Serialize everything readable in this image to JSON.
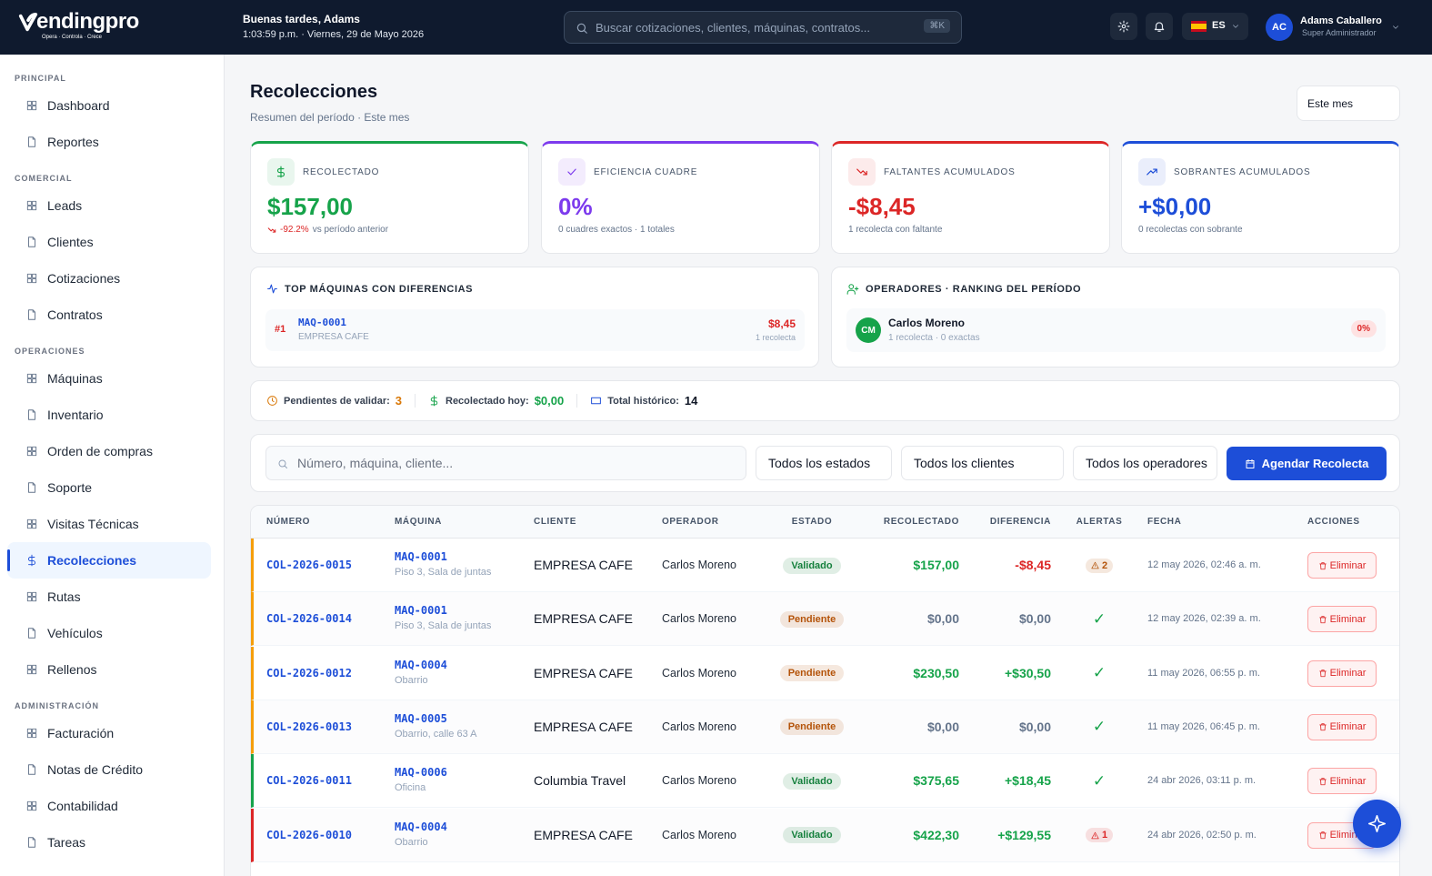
{
  "header": {
    "brand": "endingpro",
    "tagline": "Opera · Controla · Crece",
    "greeting": "Buenas tardes, Adams",
    "datetime": "1:03:59 p.m. · Viernes, 29 de Mayo 2026",
    "search_placeholder": "Buscar cotizaciones, clientes, máquinas, contratos...",
    "shortcut": "⌘K",
    "language": "ES",
    "user": {
      "initials": "AC",
      "name": "Adams Caballero",
      "role": "Super Administrador"
    }
  },
  "sidebar": {
    "sections": [
      {
        "title": "PRINCIPAL",
        "items": [
          {
            "label": "Dashboard"
          },
          {
            "label": "Reportes"
          }
        ]
      },
      {
        "title": "COMERCIAL",
        "items": [
          {
            "label": "Leads"
          },
          {
            "label": "Clientes"
          },
          {
            "label": "Cotizaciones"
          },
          {
            "label": "Contratos"
          }
        ]
      },
      {
        "title": "OPERACIONES",
        "items": [
          {
            "label": "Máquinas"
          },
          {
            "label": "Inventario"
          },
          {
            "label": "Orden de compras"
          },
          {
            "label": "Soporte"
          },
          {
            "label": "Visitas Técnicas"
          },
          {
            "label": "Recolecciones",
            "active": true
          },
          {
            "label": "Rutas"
          },
          {
            "label": "Vehículos"
          },
          {
            "label": "Rellenos"
          }
        ]
      },
      {
        "title": "ADMINISTRACIÓN",
        "items": [
          {
            "label": "Facturación"
          },
          {
            "label": "Notas de Crédito"
          },
          {
            "label": "Contabilidad"
          },
          {
            "label": "Tareas"
          }
        ]
      }
    ]
  },
  "page": {
    "title": "Recolecciones",
    "subtitle": "Resumen del período · Este mes",
    "period": "Este mes"
  },
  "kpis": [
    {
      "label": "RECOLECTADO",
      "value": "$157,00",
      "change": "-92.2%",
      "note": "vs período anterior",
      "color": "#16a34a"
    },
    {
      "label": "EFICIENCIA CUADRE",
      "value": "0%",
      "note": "0 cuadres exactos · 1 totales",
      "color": "#7c3aed"
    },
    {
      "label": "FALTANTES ACUMULADOS",
      "value": "-$8,45",
      "note": "1 recolecta con faltante",
      "color": "#dc2626"
    },
    {
      "label": "SOBRANTES ACUMULADOS",
      "value": "+$0,00",
      "note": "0 recolectas con sobrante",
      "color": "#1d4ed8"
    }
  ],
  "top_machines": {
    "title": "TOP MÁQUINAS CON DIFERENCIAS",
    "items": [
      {
        "rank": "#1",
        "code": "MAQ-0001",
        "client": "EMPRESA CAFE",
        "amount": "$8,45",
        "note": "1 recolecta"
      }
    ]
  },
  "operators": {
    "title": "OPERADORES · RANKING DEL PERÍODO",
    "items": [
      {
        "initials": "CM",
        "name": "Carlos Moreno",
        "note": "1 recolecta · 0 exactas",
        "pct": "0%"
      }
    ]
  },
  "summary": [
    {
      "label": "Pendientes de validar:",
      "value": 3,
      "color": "#d97706"
    },
    {
      "label": "Recolectado hoy:",
      "value": "$0,00",
      "color": "#16a34a"
    },
    {
      "label": "Total histórico:",
      "value": 14,
      "color": "#111827"
    }
  ],
  "filters": {
    "search_placeholder": "Número, máquina, cliente...",
    "selects": [
      "Todos los estados",
      "Todos los clientes",
      "Todos los operadores"
    ],
    "button": "Agendar Recolecta"
  },
  "table": {
    "columns": [
      "NÚMERO",
      "MÁQUINA",
      "CLIENTE",
      "OPERADOR",
      "ESTADO",
      "RECOLECTADO",
      "DIFERENCIA",
      "ALERTAS",
      "FECHA",
      "ACCIONES"
    ],
    "rows": [
      {
        "number": "COL-2026-0015",
        "machine": "MAQ-0001",
        "location": "Piso 3, Sala de juntas",
        "client": "EMPRESA CAFE",
        "operator": "Carlos Moreno",
        "status": "Validado",
        "status_color": "#15803d",
        "collected": "$157,00",
        "difference": "-$8,45",
        "alert": "2",
        "alert_color": "#b45309",
        "alert_badge": true,
        "date": "12 may 2026, 02:46 a. m.",
        "action": "Eliminar",
        "accent": "#f59e0b"
      },
      {
        "number": "COL-2026-0014",
        "machine": "MAQ-0001",
        "location": "Piso 3, Sala de juntas",
        "client": "EMPRESA CAFE",
        "operator": "Carlos Moreno",
        "status": "Pendiente",
        "status_color": "#b45309",
        "collected": "$0,00",
        "difference": "$0,00",
        "alert": "✓",
        "alert_color": "#16a34a",
        "alert_badge": false,
        "date": "12 may 2026, 02:39 a. m.",
        "action": "Eliminar",
        "accent": "#f59e0b"
      },
      {
        "number": "COL-2026-0012",
        "machine": "MAQ-0004",
        "location": "Obarrio",
        "client": "EMPRESA CAFE",
        "operator": "Carlos Moreno",
        "status": "Pendiente",
        "status_color": "#b45309",
        "collected": "$230,50",
        "difference": "+$30,50",
        "alert": "✓",
        "alert_color": "#16a34a",
        "alert_badge": false,
        "date": "11 may 2026, 06:55 p. m.",
        "action": "Eliminar",
        "accent": "#f59e0b"
      },
      {
        "number": "COL-2026-0013",
        "machine": "MAQ-0005",
        "location": "Obarrio, calle 63 A",
        "client": "EMPRESA CAFE",
        "operator": "Carlos Moreno",
        "status": "Pendiente",
        "status_color": "#b45309",
        "collected": "$0,00",
        "difference": "$0,00",
        "alert": "✓",
        "alert_color": "#16a34a",
        "alert_badge": false,
        "date": "11 may 2026, 06:45 p. m.",
        "action": "Eliminar",
        "accent": "#f59e0b"
      },
      {
        "number": "COL-2026-0011",
        "machine": "MAQ-0006",
        "location": "Oficina",
        "client": "Columbia Travel",
        "operator": "Carlos Moreno",
        "status": "Validado",
        "status_color": "#15803d",
        "collected": "$375,65",
        "difference": "+$18,45",
        "alert": "✓",
        "alert_color": "#16a34a",
        "alert_badge": false,
        "date": "24 abr 2026, 03:11 p. m.",
        "action": "Eliminar",
        "accent": "#16a34a"
      },
      {
        "number": "COL-2026-0010",
        "machine": "MAQ-0004",
        "location": "Obarrio",
        "client": "EMPRESA CAFE",
        "operator": "Carlos Moreno",
        "status": "Validado",
        "status_color": "#15803d",
        "collected": "$422,30",
        "difference": "+$129,55",
        "alert": "1",
        "alert_color": "#dc2626",
        "alert_badge": true,
        "date": "24 abr 2026, 02:50 p. m.",
        "action": "Eliminar",
        "accent": "#dc2626"
      }
    ]
  }
}
